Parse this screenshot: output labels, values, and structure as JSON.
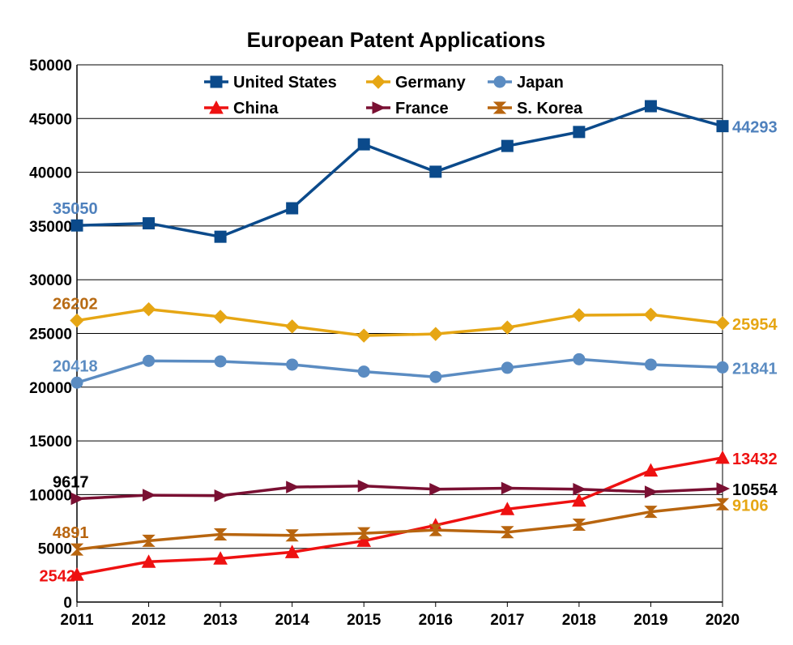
{
  "chart_data": {
    "type": "line",
    "title": "European Patent Applications",
    "xlabel": "",
    "ylabel": "",
    "ylim": [
      0,
      50000
    ],
    "ytick_step": 5000,
    "grid": "horizontal",
    "legend_position": "top-center",
    "x": [
      "2011",
      "2012",
      "2013",
      "2014",
      "2015",
      "2016",
      "2017",
      "2018",
      "2019",
      "2020"
    ],
    "series": [
      {
        "name": "United States",
        "color": "#0b4a8b",
        "marker": "square",
        "values": [
          35050,
          35250,
          34000,
          36650,
          42600,
          40050,
          42450,
          43750,
          46150,
          44293
        ],
        "labels": [
          {
            "index": 0,
            "text": "35050",
            "color": "#4f81bd"
          },
          {
            "index": 9,
            "text": "44293",
            "color": "#4f81bd"
          }
        ]
      },
      {
        "name": "Germany",
        "color": "#e6a614",
        "marker": "diamond",
        "values": [
          26202,
          27250,
          26550,
          25650,
          24800,
          24950,
          25550,
          26700,
          26750,
          25954
        ],
        "labels": [
          {
            "index": 0,
            "text": "26202",
            "color": "#b86b14"
          },
          {
            "index": 9,
            "text": "25954",
            "color": "#e6a614"
          }
        ]
      },
      {
        "name": "Japan",
        "color": "#5b8cc2",
        "marker": "circle",
        "values": [
          20418,
          22450,
          22400,
          22100,
          21450,
          20950,
          21800,
          22600,
          22100,
          21841
        ],
        "labels": [
          {
            "index": 0,
            "text": "20418",
            "color": "#5b8cc2"
          },
          {
            "index": 9,
            "text": "21841",
            "color": "#5b8cc2"
          }
        ]
      },
      {
        "name": "China",
        "color": "#ee1111",
        "marker": "triangle-up",
        "values": [
          2542,
          3750,
          4050,
          4650,
          5700,
          7150,
          8650,
          9450,
          12250,
          13432
        ],
        "labels": [
          {
            "index": 0,
            "text": "2542",
            "color": "#ee1111"
          },
          {
            "index": 9,
            "text": "13432",
            "color": "#ee1111"
          }
        ]
      },
      {
        "name": "France",
        "color": "#7a1033",
        "marker": "triangle-right",
        "values": [
          9617,
          9950,
          9900,
          10700,
          10800,
          10500,
          10600,
          10500,
          10250,
          10554
        ],
        "labels": [
          {
            "index": 0,
            "text": "9617",
            "color": "#000000"
          },
          {
            "index": 9,
            "text": "10554",
            "color": "#000000"
          }
        ]
      },
      {
        "name": "S. Korea",
        "color": "#b8650f",
        "marker": "hourglass",
        "values": [
          4891,
          5700,
          6300,
          6200,
          6400,
          6700,
          6500,
          7200,
          8400,
          9106
        ],
        "labels": [
          {
            "index": 0,
            "text": "4891",
            "color": "#b8650f"
          },
          {
            "index": 9,
            "text": "9106",
            "color": "#e6a614"
          }
        ]
      }
    ]
  }
}
